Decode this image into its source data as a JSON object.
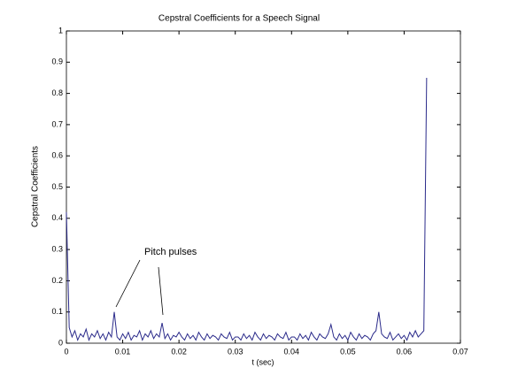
{
  "chart_data": {
    "type": "line",
    "title": "Cepstral Coefficients for a Speech Signal",
    "x_label": "t (sec)",
    "y_label": "Cepstral Coefficients",
    "annotation": "Pitch pulses",
    "color": "#2a2a8a",
    "xlim": [
      0,
      0.07
    ],
    "xticks": [
      0,
      0.01,
      0.02,
      0.03,
      0.04,
      0.05,
      0.06,
      0.07
    ],
    "ylim": [
      0,
      1
    ],
    "yticks": [
      0,
      0.1,
      0.2,
      0.3,
      0.4,
      0.5,
      0.6,
      0.7,
      0.8,
      0.9,
      1
    ],
    "x": [
      0,
      0.0005,
      0.001,
      0.0015,
      0.002,
      0.0025,
      0.003,
      0.0035,
      0.004,
      0.0045,
      0.005,
      0.0055,
      0.006,
      0.0065,
      0.007,
      0.0075,
      0.008,
      0.0085,
      0.009,
      0.0095,
      0.01,
      0.0105,
      0.011,
      0.0115,
      0.012,
      0.0125,
      0.013,
      0.0135,
      0.014,
      0.0145,
      0.015,
      0.0155,
      0.016,
      0.0165,
      0.017,
      0.0175,
      0.018,
      0.0185,
      0.019,
      0.0195,
      0.02,
      0.0205,
      0.021,
      0.0215,
      0.022,
      0.0225,
      0.023,
      0.0235,
      0.024,
      0.0245,
      0.025,
      0.0255,
      0.026,
      0.0265,
      0.027,
      0.0275,
      0.028,
      0.0285,
      0.029,
      0.0295,
      0.03,
      0.0305,
      0.031,
      0.0315,
      0.032,
      0.0325,
      0.033,
      0.0335,
      0.034,
      0.0345,
      0.035,
      0.0355,
      0.036,
      0.0365,
      0.037,
      0.0375,
      0.038,
      0.0385,
      0.039,
      0.0395,
      0.04,
      0.0405,
      0.041,
      0.0415,
      0.042,
      0.0425,
      0.043,
      0.0435,
      0.044,
      0.0445,
      0.045,
      0.0455,
      0.046,
      0.0465,
      0.047,
      0.0475,
      0.048,
      0.0485,
      0.049,
      0.0495,
      0.05,
      0.0505,
      0.051,
      0.0515,
      0.052,
      0.0525,
      0.053,
      0.0535,
      0.054,
      0.0545,
      0.055,
      0.0555,
      0.056,
      0.0565,
      0.057,
      0.0575,
      0.058,
      0.0585,
      0.059,
      0.0595,
      0.06,
      0.0605,
      0.061,
      0.0615,
      0.062,
      0.0625,
      0.063,
      0.0635,
      0.064
    ],
    "values": [
      0.42,
      0.05,
      0.02,
      0.04,
      0.01,
      0.03,
      0.02,
      0.045,
      0.01,
      0.03,
      0.02,
      0.04,
      0.015,
      0.03,
      0.01,
      0.035,
      0.02,
      0.1,
      0.02,
      0.01,
      0.03,
      0.015,
      0.035,
      0.01,
      0.025,
      0.02,
      0.04,
      0.01,
      0.03,
      0.02,
      0.04,
      0.015,
      0.03,
      0.02,
      0.065,
      0.015,
      0.03,
      0.01,
      0.025,
      0.02,
      0.035,
      0.02,
      0.01,
      0.03,
      0.015,
      0.025,
      0.01,
      0.035,
      0.02,
      0.01,
      0.03,
      0.015,
      0.025,
      0.02,
      0.01,
      0.03,
      0.02,
      0.015,
      0.035,
      0.01,
      0.02,
      0.02,
      0.01,
      0.03,
      0.015,
      0.025,
      0.01,
      0.035,
      0.02,
      0.01,
      0.03,
      0.015,
      0.025,
      0.02,
      0.01,
      0.03,
      0.02,
      0.015,
      0.035,
      0.01,
      0.02,
      0.02,
      0.01,
      0.03,
      0.015,
      0.025,
      0.01,
      0.035,
      0.02,
      0.01,
      0.03,
      0.02,
      0.015,
      0.03,
      0.06,
      0.02,
      0.01,
      0.03,
      0.015,
      0.025,
      0.01,
      0.035,
      0.02,
      0.01,
      0.03,
      0.015,
      0.025,
      0.02,
      0.01,
      0.03,
      0.04,
      0.1,
      0.03,
      0.02,
      0.015,
      0.035,
      0.01,
      0.02,
      0.03,
      0.015,
      0.025,
      0.01,
      0.035,
      0.02,
      0.04,
      0.02,
      0.03,
      0.04,
      0.85
    ]
  }
}
